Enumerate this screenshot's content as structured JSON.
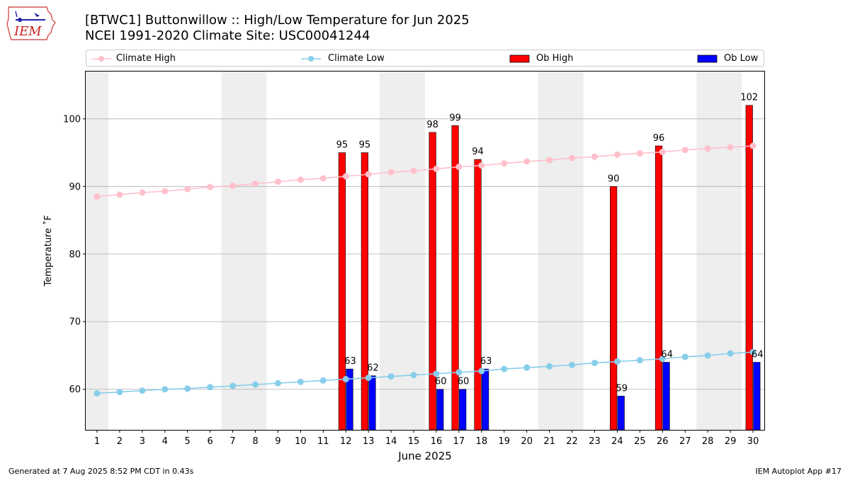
{
  "header": {
    "title_line1": "[BTWC1] Buttonwillow :: High/Low Temperature for Jun 2025",
    "title_line2": "NCEI 1991-2020 Climate Site: USC00041244"
  },
  "logo": {
    "text": "IEM"
  },
  "footer": {
    "left": "Generated at 7 Aug 2025 8:52 PM CDT in 0.43s",
    "right": "IEM Autoplot App #17"
  },
  "legend": {
    "climate_high": "Climate High",
    "climate_low": "Climate Low",
    "ob_high": "Ob High",
    "ob_low": "Ob Low"
  },
  "colors": {
    "climate_high": "#ffc0cb",
    "climate_low": "#87ceeb",
    "ob_high": "#ff0000",
    "ob_low": "#0000ff",
    "weekend_shade": "#eeeeee",
    "grid": "#b0b0b0"
  },
  "chart_data": {
    "type": "bar",
    "xlabel": "June 2025",
    "ylabel": "Temperature $^\\circ$F",
    "ylabel_display": "Temperature ˚F",
    "xlim": [
      0.5,
      30.5
    ],
    "ylim": [
      54,
      107
    ],
    "yticks": [
      60,
      70,
      80,
      90,
      100
    ],
    "days": [
      1,
      2,
      3,
      4,
      5,
      6,
      7,
      8,
      9,
      10,
      11,
      12,
      13,
      14,
      15,
      16,
      17,
      18,
      19,
      20,
      21,
      22,
      23,
      24,
      25,
      26,
      27,
      28,
      29,
      30
    ],
    "weekend_days": [
      1,
      7,
      8,
      14,
      15,
      21,
      22,
      28,
      29
    ],
    "climate_high": [
      88.5,
      88.8,
      89.1,
      89.3,
      89.6,
      89.9,
      90.1,
      90.4,
      90.7,
      91.0,
      91.2,
      91.5,
      91.8,
      92.1,
      92.3,
      92.6,
      92.9,
      93.1,
      93.4,
      93.7,
      93.9,
      94.2,
      94.4,
      94.7,
      94.9,
      95.1,
      95.4,
      95.6,
      95.8,
      96.0
    ],
    "climate_low": [
      59.4,
      59.6,
      59.8,
      60.0,
      60.1,
      60.3,
      60.5,
      60.7,
      60.9,
      61.1,
      61.3,
      61.5,
      61.7,
      61.9,
      62.1,
      62.3,
      62.5,
      62.7,
      63.0,
      63.2,
      63.4,
      63.6,
      63.9,
      64.1,
      64.3,
      64.5,
      64.8,
      65.0,
      65.3,
      65.5
    ],
    "observations": [
      {
        "day": 12,
        "high": 95,
        "low": 63
      },
      {
        "day": 13,
        "high": 95,
        "low": 62
      },
      {
        "day": 16,
        "high": 98,
        "low": 60
      },
      {
        "day": 17,
        "high": 99,
        "low": 60
      },
      {
        "day": 18,
        "high": 94,
        "low": 63
      },
      {
        "day": 24,
        "high": 90,
        "low": 59
      },
      {
        "day": 26,
        "high": 96,
        "low": 64
      },
      {
        "day": 30,
        "high": 102,
        "low": 64
      }
    ],
    "grid": true,
    "legend_position": "top"
  }
}
